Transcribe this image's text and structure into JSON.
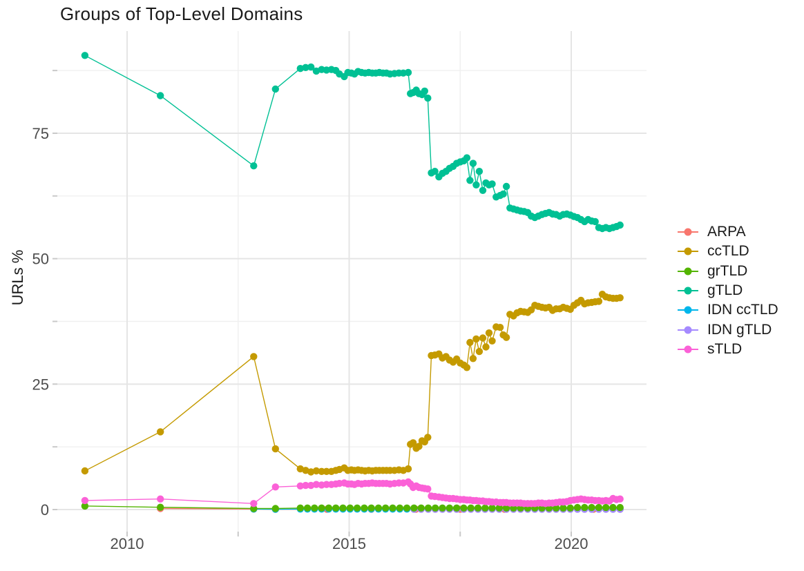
{
  "chart_data": {
    "type": "line",
    "title": "Groups of Top-Level Domains",
    "xlabel": "",
    "ylabel": "URLs %",
    "xlim": [
      2008.47,
      2021.7
    ],
    "ylim": [
      -4.6,
      95.3
    ],
    "grid": "major and minor, light gray on white",
    "legend_position": "right",
    "x_axis": {
      "major": [
        {
          "v": 2010,
          "label": "2010"
        },
        {
          "v": 2015,
          "label": "2015"
        },
        {
          "v": 2020,
          "label": "2020"
        }
      ],
      "minor": [
        2012.5,
        2017.5
      ]
    },
    "y_axis": {
      "major": [
        {
          "v": 0,
          "label": "0"
        },
        {
          "v": 25,
          "label": "25"
        },
        {
          "v": 50,
          "label": "50"
        },
        {
          "v": 75,
          "label": "75"
        }
      ],
      "minor": [
        12.5,
        37.5,
        62.5,
        87.5
      ]
    },
    "colors": {
      "grid_major": "#E5E5E5",
      "grid_minor": "#F0F0F0",
      "tick": "#C9C9C9",
      "axis_text": "#4D4D4D",
      "title_text": "#1A1A1A",
      "background": "#FFFFFF"
    },
    "series": [
      {
        "name": "ARPA",
        "color": "#F8766D",
        "x": [
          2010.75,
          2012.85,
          2013.34,
          2014.5,
          2015.5,
          2016.5,
          2017.5,
          2018.5,
          2019.5,
          2020.5,
          2021.1
        ],
        "y": [
          0.2,
          0.1,
          0.05,
          0.05,
          0.05,
          0.05,
          0.05,
          0.05,
          0.05,
          0.05,
          0.05
        ]
      },
      {
        "name": "ccTLD",
        "color": "#C49A00",
        "x": [
          2009.05,
          2010.75,
          2012.85,
          2013.34,
          2013.9,
          2014.02,
          2014.14,
          2014.26,
          2014.38,
          2014.49,
          2014.6,
          2014.7,
          2014.78,
          2014.89,
          2014.97,
          2015.05,
          2015.12,
          2015.2,
          2015.28,
          2015.36,
          2015.44,
          2015.52,
          2015.6,
          2015.68,
          2015.76,
          2015.84,
          2015.92,
          2016.02,
          2016.12,
          2016.22,
          2016.33,
          2016.38,
          2016.44,
          2016.51,
          2016.57,
          2016.64,
          2016.7,
          2016.77,
          2016.85,
          2016.93,
          2017.02,
          2017.1,
          2017.18,
          2017.26,
          2017.34,
          2017.42,
          2017.5,
          2017.58,
          2017.65,
          2017.72,
          2017.79,
          2017.86,
          2017.93,
          2018.01,
          2018.08,
          2018.15,
          2018.22,
          2018.31,
          2018.4,
          2018.47,
          2018.54,
          2018.62,
          2018.7,
          2018.78,
          2018.86,
          2018.94,
          2019.02,
          2019.1,
          2019.18,
          2019.26,
          2019.34,
          2019.42,
          2019.5,
          2019.58,
          2019.66,
          2019.74,
          2019.82,
          2019.9,
          2019.98,
          2020.06,
          2020.14,
          2020.22,
          2020.3,
          2020.38,
          2020.46,
          2020.54,
          2020.62,
          2020.7,
          2020.78,
          2020.86,
          2020.94,
          2021.02,
          2021.1
        ],
        "y": [
          7.7,
          15.5,
          30.5,
          12.1,
          8.1,
          7.8,
          7.5,
          7.7,
          7.6,
          7.6,
          7.6,
          7.8,
          8.0,
          8.3,
          7.8,
          7.9,
          7.8,
          7.9,
          7.8,
          7.7,
          7.8,
          7.7,
          7.8,
          7.8,
          7.8,
          7.8,
          7.8,
          7.8,
          7.9,
          7.8,
          8.1,
          13.0,
          13.3,
          12.2,
          12.6,
          13.7,
          13.5,
          14.4,
          30.7,
          30.8,
          31.0,
          30.2,
          30.5,
          29.8,
          29.4,
          30.0,
          29.2,
          28.8,
          28.3,
          33.3,
          30.1,
          34.0,
          31.5,
          34.2,
          32.4,
          35.2,
          33.6,
          36.4,
          36.3,
          34.8,
          34.3,
          38.9,
          38.6,
          39.2,
          39.5,
          39.4,
          39.3,
          39.8,
          40.7,
          40.5,
          40.3,
          40.2,
          40.3,
          39.7,
          40.0,
          40.0,
          40.3,
          40.1,
          39.9,
          40.7,
          41.2,
          41.7,
          41.0,
          41.2,
          41.3,
          41.4,
          41.5,
          42.9,
          42.4,
          42.2,
          42.1,
          42.1,
          42.2
        ]
      },
      {
        "name": "grTLD",
        "color": "#53B400",
        "x": [
          2009.05,
          2010.75,
          2012.85,
          2013.34,
          2013.9,
          2014.06,
          2014.22,
          2014.38,
          2014.54,
          2014.7,
          2014.86,
          2015.02,
          2015.18,
          2015.34,
          2015.5,
          2015.66,
          2015.82,
          2015.98,
          2016.14,
          2016.3,
          2016.46,
          2016.62,
          2016.78,
          2016.94,
          2017.1,
          2017.26,
          2017.42,
          2017.58,
          2017.74,
          2017.9,
          2018.06,
          2018.22,
          2018.38,
          2018.54,
          2018.7,
          2018.86,
          2019.02,
          2019.18,
          2019.34,
          2019.5,
          2019.66,
          2019.82,
          2019.98,
          2020.14,
          2020.3,
          2020.46,
          2020.62,
          2020.78,
          2020.94,
          2021.1
        ],
        "y": [
          0.7,
          0.45,
          0.2,
          0.2,
          0.3,
          0.3,
          0.3,
          0.3,
          0.3,
          0.3,
          0.3,
          0.3,
          0.3,
          0.3,
          0.3,
          0.3,
          0.3,
          0.3,
          0.3,
          0.3,
          0.3,
          0.3,
          0.3,
          0.3,
          0.3,
          0.3,
          0.3,
          0.3,
          0.3,
          0.3,
          0.3,
          0.3,
          0.3,
          0.3,
          0.3,
          0.3,
          0.3,
          0.3,
          0.3,
          0.3,
          0.3,
          0.3,
          0.3,
          0.4,
          0.4,
          0.4,
          0.4,
          0.4,
          0.4,
          0.4
        ]
      },
      {
        "name": "gTLD",
        "color": "#00C094",
        "x": [
          2009.05,
          2010.75,
          2012.85,
          2013.34,
          2013.9,
          2014.02,
          2014.14,
          2014.26,
          2014.38,
          2014.49,
          2014.6,
          2014.7,
          2014.78,
          2014.89,
          2014.97,
          2015.05,
          2015.12,
          2015.2,
          2015.28,
          2015.36,
          2015.44,
          2015.52,
          2015.6,
          2015.68,
          2015.76,
          2015.84,
          2015.92,
          2016.02,
          2016.12,
          2016.22,
          2016.33,
          2016.38,
          2016.44,
          2016.51,
          2016.57,
          2016.64,
          2016.7,
          2016.77,
          2016.85,
          2016.93,
          2017.02,
          2017.1,
          2017.18,
          2017.26,
          2017.34,
          2017.42,
          2017.5,
          2017.58,
          2017.65,
          2017.72,
          2017.79,
          2017.86,
          2017.93,
          2018.01,
          2018.08,
          2018.15,
          2018.22,
          2018.31,
          2018.4,
          2018.47,
          2018.54,
          2018.62,
          2018.7,
          2018.78,
          2018.86,
          2018.94,
          2019.02,
          2019.1,
          2019.18,
          2019.26,
          2019.34,
          2019.42,
          2019.5,
          2019.58,
          2019.66,
          2019.74,
          2019.82,
          2019.9,
          2019.98,
          2020.06,
          2020.14,
          2020.22,
          2020.3,
          2020.38,
          2020.46,
          2020.54,
          2020.62,
          2020.7,
          2020.78,
          2020.86,
          2020.94,
          2021.02,
          2021.1
        ],
        "y": [
          90.5,
          82.5,
          68.5,
          83.8,
          87.9,
          88.1,
          88.2,
          87.4,
          87.7,
          87.6,
          87.7,
          87.5,
          86.8,
          86.3,
          87.1,
          87.0,
          86.8,
          87.3,
          87.1,
          87.0,
          87.1,
          87.0,
          87.0,
          87.1,
          87.0,
          87.0,
          86.8,
          86.9,
          87.0,
          87.0,
          87.1,
          82.9,
          83.1,
          83.6,
          82.9,
          82.7,
          83.4,
          82.0,
          67.1,
          67.4,
          66.3,
          67.0,
          67.4,
          68.0,
          68.4,
          69.0,
          69.3,
          69.5,
          70.1,
          65.6,
          69.0,
          64.7,
          67.4,
          63.6,
          65.1,
          64.7,
          64.9,
          62.3,
          62.6,
          62.9,
          64.4,
          60.1,
          59.9,
          59.7,
          59.5,
          59.4,
          59.2,
          58.5,
          58.2,
          58.5,
          58.8,
          59.0,
          59.2,
          58.9,
          58.8,
          58.5,
          58.8,
          58.9,
          58.7,
          58.4,
          58.2,
          57.8,
          57.4,
          57.8,
          57.5,
          57.4,
          56.2,
          56.0,
          56.2,
          56.0,
          56.2,
          56.4,
          56.7
        ]
      },
      {
        "name": "IDN ccTLD",
        "color": "#00B6EB",
        "x": [
          2012.85,
          2013.34,
          2013.9,
          2014.06,
          2014.22,
          2014.38,
          2014.54,
          2014.7,
          2014.86,
          2015.02,
          2015.18,
          2015.34,
          2015.5,
          2015.66,
          2015.82,
          2015.98,
          2016.14,
          2016.3,
          2016.46,
          2016.62,
          2016.78,
          2016.94,
          2017.1,
          2017.26,
          2017.42,
          2017.58,
          2017.74,
          2017.9,
          2018.06,
          2018.22,
          2018.38,
          2018.54,
          2018.7,
          2018.86,
          2019.02,
          2019.18,
          2019.34,
          2019.5,
          2019.66,
          2019.82,
          2019.98,
          2020.14,
          2020.3,
          2020.46,
          2020.62,
          2020.78,
          2020.94,
          2021.1
        ],
        "y": [
          0.1,
          0.05,
          0.1,
          0.1,
          0.1,
          0.1,
          0.1,
          0.1,
          0.1,
          0.1,
          0.1,
          0.1,
          0.1,
          0.1,
          0.1,
          0.1,
          0.1,
          0.1,
          0.1,
          0.1,
          0.1,
          0.1,
          0.1,
          0.1,
          0.1,
          0.1,
          0.1,
          0.1,
          0.1,
          0.1,
          0.1,
          0.1,
          0.1,
          0.1,
          0.1,
          0.1,
          0.1,
          0.1,
          0.1,
          0.1,
          0.1,
          0.1,
          0.1,
          0.1,
          0.1,
          0.1,
          0.1,
          0.1
        ]
      },
      {
        "name": "IDN gTLD",
        "color": "#A58AFF",
        "x": [
          2016.46,
          2016.62,
          2016.78,
          2016.94,
          2017.1,
          2017.26,
          2017.42,
          2017.58,
          2017.74,
          2017.9,
          2018.06,
          2018.22,
          2018.38,
          2018.54,
          2018.7,
          2018.86,
          2019.02,
          2019.18,
          2019.34,
          2019.5,
          2019.66,
          2019.82,
          2019.98,
          2020.14,
          2020.3,
          2020.46,
          2020.62,
          2020.78,
          2020.94,
          2021.1
        ],
        "y": [
          0.05,
          0.05,
          0.05,
          0.05,
          0.05,
          0.05,
          0.05,
          0.05,
          0.05,
          0.05,
          0.05,
          0.05,
          0.05,
          0.05,
          0.05,
          0.05,
          0.05,
          0.05,
          0.05,
          0.05,
          0.05,
          0.05,
          0.05,
          0.05,
          0.05,
          0.05,
          0.05,
          0.05,
          0.05,
          0.05
        ]
      },
      {
        "name": "sTLD",
        "color": "#FB61D7",
        "x": [
          2009.05,
          2010.75,
          2012.85,
          2013.34,
          2013.9,
          2014.02,
          2014.14,
          2014.26,
          2014.38,
          2014.49,
          2014.6,
          2014.7,
          2014.78,
          2014.89,
          2014.97,
          2015.05,
          2015.12,
          2015.2,
          2015.28,
          2015.36,
          2015.44,
          2015.52,
          2015.6,
          2015.68,
          2015.76,
          2015.84,
          2015.92,
          2016.02,
          2016.12,
          2016.22,
          2016.33,
          2016.38,
          2016.44,
          2016.51,
          2016.57,
          2016.64,
          2016.7,
          2016.77,
          2016.85,
          2016.93,
          2017.02,
          2017.1,
          2017.18,
          2017.26,
          2017.34,
          2017.42,
          2017.5,
          2017.58,
          2017.65,
          2017.72,
          2017.79,
          2017.86,
          2017.93,
          2018.01,
          2018.08,
          2018.15,
          2018.22,
          2018.31,
          2018.4,
          2018.47,
          2018.54,
          2018.62,
          2018.7,
          2018.78,
          2018.86,
          2018.94,
          2019.02,
          2019.1,
          2019.18,
          2019.26,
          2019.34,
          2019.42,
          2019.5,
          2019.58,
          2019.66,
          2019.74,
          2019.82,
          2019.9,
          2019.98,
          2020.06,
          2020.14,
          2020.22,
          2020.3,
          2020.38,
          2020.46,
          2020.54,
          2020.62,
          2020.7,
          2020.78,
          2020.86,
          2020.94,
          2021.02,
          2021.1
        ],
        "y": [
          1.8,
          2.1,
          1.2,
          4.5,
          4.7,
          4.8,
          4.8,
          5.0,
          4.9,
          5.0,
          5.0,
          5.1,
          5.2,
          5.3,
          5.1,
          5.1,
          5.0,
          5.2,
          5.1,
          5.2,
          5.2,
          5.3,
          5.2,
          5.2,
          5.2,
          5.2,
          5.1,
          5.2,
          5.3,
          5.3,
          5.5,
          5.1,
          4.4,
          4.7,
          4.4,
          4.3,
          4.2,
          4.1,
          2.7,
          2.6,
          2.5,
          2.4,
          2.3,
          2.2,
          2.2,
          2.1,
          2.0,
          2.0,
          1.9,
          1.9,
          1.8,
          1.8,
          1.7,
          1.7,
          1.6,
          1.6,
          1.5,
          1.5,
          1.4,
          1.4,
          1.4,
          1.3,
          1.3,
          1.3,
          1.3,
          1.2,
          1.2,
          1.2,
          1.2,
          1.3,
          1.3,
          1.2,
          1.3,
          1.3,
          1.4,
          1.5,
          1.5,
          1.6,
          1.8,
          1.9,
          2.0,
          2.1,
          2.0,
          1.9,
          1.9,
          1.8,
          1.8,
          1.7,
          1.8,
          1.7,
          2.2,
          2.0,
          2.1
        ]
      }
    ]
  }
}
